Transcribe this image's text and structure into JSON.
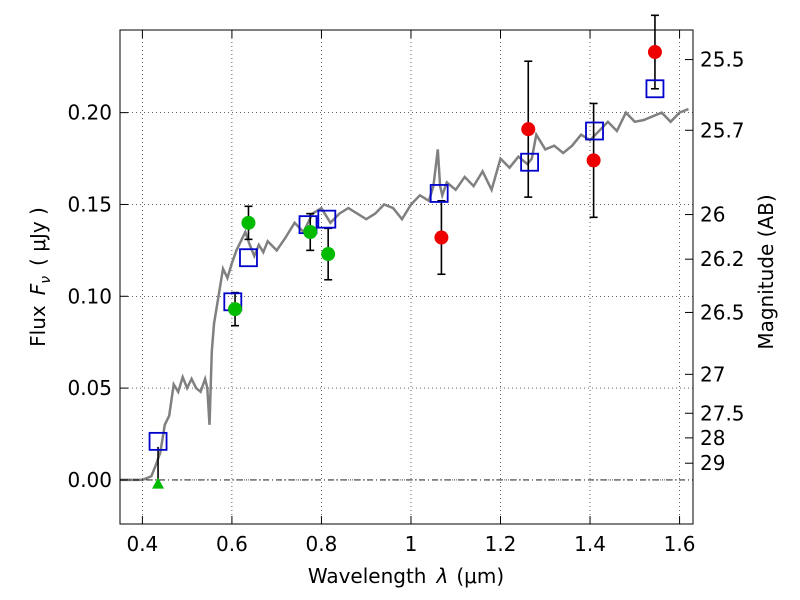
{
  "chart_data": {
    "type": "scatter",
    "title": "",
    "xlabel_text": "Wavelength",
    "xlabel_symbol": "λ",
    "xlabel_unit": "(μm)",
    "ylabel_text": "Flux",
    "ylabel_symbol": "F",
    "ylabel_sub": "ν",
    "ylabel_unit": "( μJy )",
    "y2label": "Magnitude (AB)",
    "xlim": [
      0.35,
      1.63
    ],
    "ylim": [
      -0.024,
      0.245
    ],
    "xticks": [
      0.4,
      0.6,
      0.8,
      1.0,
      1.2,
      1.4,
      1.6
    ],
    "xtick_labels": [
      "0.4",
      "0.6",
      "0.8",
      "1",
      "1.2",
      "1.4",
      "1.6"
    ],
    "yticks": [
      0.0,
      0.05,
      0.1,
      0.15,
      0.2
    ],
    "ytick_labels": [
      "0.00",
      "0.05",
      "0.10",
      "0.15",
      "0.20"
    ],
    "y2ticks": [
      {
        "label": "25.5",
        "flux": 0.2289
      },
      {
        "label": "25.7",
        "flux": 0.1904
      },
      {
        "label": "26",
        "flux": 0.1445
      },
      {
        "label": "26.2",
        "flux": 0.1202
      },
      {
        "label": "26.5",
        "flux": 0.0912
      },
      {
        "label": "27",
        "flux": 0.0575
      },
      {
        "label": "27.5",
        "flux": 0.0363
      },
      {
        "label": "28",
        "flux": 0.0229
      },
      {
        "label": "29",
        "flux": 0.0091
      }
    ],
    "grid": true,
    "colors": {
      "model": "#808080",
      "model_points": "#0000cc",
      "observed_optical": "#00bb00",
      "observed_ir": "#ee0000",
      "errorbar": "#000000"
    },
    "model_spectrum": {
      "x": [
        0.35,
        0.4,
        0.42,
        0.43,
        0.44,
        0.45,
        0.46,
        0.47,
        0.48,
        0.49,
        0.5,
        0.51,
        0.52,
        0.53,
        0.54,
        0.545,
        0.55,
        0.555,
        0.56,
        0.57,
        0.58,
        0.59,
        0.6,
        0.61,
        0.62,
        0.63,
        0.64,
        0.65,
        0.66,
        0.67,
        0.68,
        0.7,
        0.72,
        0.74,
        0.76,
        0.78,
        0.8,
        0.82,
        0.84,
        0.86,
        0.88,
        0.9,
        0.92,
        0.94,
        0.96,
        0.98,
        1.0,
        1.02,
        1.04,
        1.05,
        1.06,
        1.065,
        1.07,
        1.08,
        1.1,
        1.12,
        1.14,
        1.16,
        1.18,
        1.2,
        1.22,
        1.24,
        1.26,
        1.27,
        1.28,
        1.3,
        1.32,
        1.34,
        1.36,
        1.38,
        1.4,
        1.42,
        1.44,
        1.46,
        1.48,
        1.5,
        1.52,
        1.54,
        1.56,
        1.58,
        1.6,
        1.62
      ],
      "y": [
        0.0,
        0.0,
        0.002,
        0.008,
        0.015,
        0.03,
        0.035,
        0.052,
        0.048,
        0.056,
        0.05,
        0.055,
        0.05,
        0.048,
        0.055,
        0.05,
        0.03,
        0.07,
        0.085,
        0.1,
        0.115,
        0.11,
        0.118,
        0.125,
        0.13,
        0.135,
        0.128,
        0.122,
        0.128,
        0.124,
        0.13,
        0.125,
        0.132,
        0.14,
        0.135,
        0.145,
        0.148,
        0.14,
        0.145,
        0.148,
        0.145,
        0.142,
        0.145,
        0.15,
        0.148,
        0.142,
        0.15,
        0.155,
        0.152,
        0.16,
        0.18,
        0.16,
        0.155,
        0.162,
        0.158,
        0.165,
        0.16,
        0.168,
        0.158,
        0.175,
        0.17,
        0.176,
        0.172,
        0.175,
        0.188,
        0.18,
        0.182,
        0.178,
        0.182,
        0.188,
        0.185,
        0.19,
        0.195,
        0.19,
        0.2,
        0.195,
        0.196,
        0.198,
        0.2,
        0.195,
        0.2,
        0.202
      ]
    },
    "series": [
      {
        "marker": "open-square",
        "x": [
          0.435,
          0.602,
          0.637,
          0.77,
          0.812,
          1.063,
          1.265,
          1.41,
          1.545
        ],
        "y": [
          0.021,
          0.097,
          0.121,
          0.139,
          0.142,
          0.156,
          0.173,
          0.19,
          0.213
        ]
      },
      {
        "marker": "filled-circle",
        "x": [
          0.607,
          0.637,
          0.775,
          0.815
        ],
        "y": [
          0.093,
          0.14,
          0.135,
          0.123
        ],
        "err": [
          0.009,
          0.009,
          0.01,
          0.014
        ]
      },
      {
        "marker": "filled-circle",
        "x": [
          1.068,
          1.262,
          1.408,
          1.545
        ],
        "y": [
          0.132,
          0.191,
          0.174,
          0.233
        ],
        "err": [
          0.02,
          0.037,
          0.031,
          0.02
        ]
      },
      {
        "marker": "triangle",
        "x": [
          0.435
        ],
        "y": [
          -0.002
        ],
        "err_up": [
          0.02
        ]
      }
    ]
  }
}
